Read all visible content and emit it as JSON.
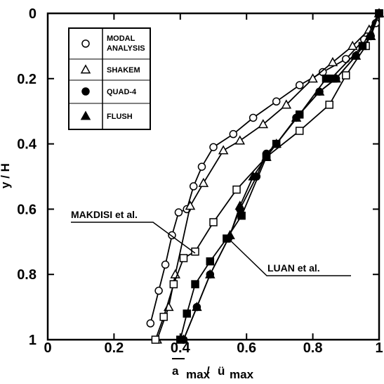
{
  "chart_data": {
    "type": "line",
    "title": "",
    "xlabel_main": "a",
    "xlabel_sub1": "max",
    "xlabel_sep": "/",
    "xlabel_main2": "ü",
    "xlabel_sub2": "max",
    "ylabel": "y / H",
    "xlim": [
      0,
      1
    ],
    "ylim": [
      0,
      1
    ],
    "y_inverted": true,
    "grid": false,
    "x_ticks": [
      "0",
      "0.2",
      "0.4",
      "0.6",
      "0.8",
      "1"
    ],
    "x_tick_values": [
      0,
      0.2,
      0.4,
      0.6,
      0.8,
      1
    ],
    "y_ticks": [
      "0",
      "0.2",
      "0.4",
      "0.6",
      "0.8",
      "1"
    ],
    "y_tick_values": [
      0,
      0.2,
      0.4,
      0.6,
      0.8,
      1
    ],
    "legend": {
      "placement": "top-left",
      "entries": [
        {
          "label_lines": [
            "MODAL",
            "ANALYSIS"
          ],
          "marker": "circle-open"
        },
        {
          "label_lines": [
            "SHAKEM"
          ],
          "marker": "triangle-open"
        },
        {
          "label_lines": [
            "QUAD-4"
          ],
          "marker": "circle-filled"
        },
        {
          "label_lines": [
            "FLUSH"
          ],
          "marker": "triangle-filled"
        }
      ]
    },
    "series": [
      {
        "name": "MODAL ANALYSIS",
        "marker": "circle-open",
        "x": [
          0.31,
          0.335,
          0.355,
          0.375,
          0.395,
          0.42,
          0.44,
          0.465,
          0.5,
          0.56,
          0.62,
          0.69,
          0.76,
          0.83,
          0.9,
          0.955,
          0.99,
          1.0
        ],
        "y": [
          0.95,
          0.85,
          0.77,
          0.68,
          0.61,
          0.6,
          0.53,
          0.47,
          0.41,
          0.37,
          0.32,
          0.27,
          0.22,
          0.18,
          0.14,
          0.08,
          0.03,
          0.0
        ]
      },
      {
        "name": "SHAKEM",
        "marker": "triangle-open",
        "x": [
          0.33,
          0.365,
          0.385,
          0.43,
          0.47,
          0.53,
          0.58,
          0.65,
          0.72,
          0.8,
          0.86,
          0.92,
          0.97,
          1.0
        ],
        "y": [
          1.0,
          0.9,
          0.8,
          0.59,
          0.52,
          0.42,
          0.39,
          0.34,
          0.28,
          0.2,
          0.15,
          0.1,
          0.05,
          0.0
        ]
      },
      {
        "name": "QUAD-4",
        "marker": "circle-filled",
        "x": [
          0.41,
          0.45,
          0.49,
          0.545,
          0.58,
          0.63,
          0.66,
          0.69,
          0.75,
          0.82,
          0.87,
          0.93,
          0.975,
          1.0
        ],
        "y": [
          1.0,
          0.9,
          0.8,
          0.69,
          0.6,
          0.5,
          0.43,
          0.4,
          0.32,
          0.24,
          0.2,
          0.13,
          0.07,
          0.0
        ]
      },
      {
        "name": "FLUSH",
        "marker": "triangle-filled",
        "x": [
          0.41,
          0.45,
          0.49,
          0.55,
          0.58,
          0.62,
          0.66,
          0.69,
          0.75,
          0.82,
          0.87,
          0.93,
          0.975,
          1.0
        ],
        "y": [
          1.0,
          0.9,
          0.8,
          0.68,
          0.59,
          0.5,
          0.44,
          0.4,
          0.32,
          0.24,
          0.2,
          0.13,
          0.07,
          0.0
        ]
      },
      {
        "name": "MAKDISI et al.",
        "marker": "square-open",
        "x": [
          0.325,
          0.35,
          0.38,
          0.41,
          0.445,
          0.5,
          0.57,
          0.66,
          0.76,
          0.85,
          0.9,
          0.96,
          1.0
        ],
        "y": [
          1.0,
          0.93,
          0.83,
          0.75,
          0.73,
          0.64,
          0.54,
          0.44,
          0.36,
          0.28,
          0.19,
          0.1,
          0.0
        ]
      },
      {
        "name": "LUAN et al.",
        "marker": "square-filled",
        "x": [
          0.4,
          0.42,
          0.445,
          0.49,
          0.54,
          0.585,
          0.66,
          0.69,
          0.76,
          0.84,
          0.855,
          0.95,
          1.0
        ],
        "y": [
          1.0,
          0.92,
          0.83,
          0.76,
          0.69,
          0.62,
          0.44,
          0.4,
          0.31,
          0.2,
          0.2,
          0.1,
          0.0
        ]
      }
    ],
    "annotations": [
      {
        "text": "MAKDISI et al.",
        "series": "MAKDISI et al."
      },
      {
        "text": "LUAN et al.",
        "series": "LUAN et al."
      }
    ]
  }
}
